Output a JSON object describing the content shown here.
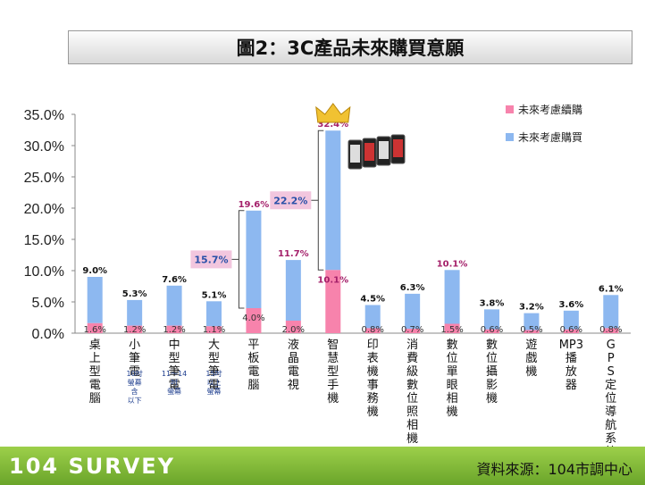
{
  "title": "圖2：3C產品未來購買意願",
  "footer": {
    "brand": "104 SURVEY",
    "source": "資料來源：104市調中心"
  },
  "colors": {
    "continue": "#f783ac",
    "buy": "#8db8f0",
    "annotation": "#f2c6de",
    "footer": "#7db83a"
  },
  "chart_data": {
    "type": "bar",
    "stacked": true,
    "ylim": [
      0,
      35
    ],
    "yticks": [
      "0.0%",
      "5.0%",
      "10.0%",
      "15.0%",
      "20.0%",
      "25.0%",
      "30.0%",
      "35.0%"
    ],
    "categories": [
      {
        "name": "桌上型電腦",
        "sub": ""
      },
      {
        "name": "小筆電",
        "sub": "10吋螢幕含以下"
      },
      {
        "name": "中型筆電",
        "sub": "11～14吋螢幕"
      },
      {
        "name": "大型筆電",
        "sub": "15吋以上螢幕"
      },
      {
        "name": "平板電腦",
        "sub": ""
      },
      {
        "name": "液晶電視",
        "sub": ""
      },
      {
        "name": "智慧型手機",
        "sub": ""
      },
      {
        "name": "印表機事務機",
        "sub": ""
      },
      {
        "name": "消費級數位照相機",
        "sub": ""
      },
      {
        "name": "數位單眼相機",
        "sub": ""
      },
      {
        "name": "數位攝影機",
        "sub": ""
      },
      {
        "name": "遊戲機",
        "sub": ""
      },
      {
        "name": "MP3播放器",
        "sub": ""
      },
      {
        "name": "GPS定位導航系統",
        "sub": ""
      }
    ],
    "series": [
      {
        "name": "未來考慮續購",
        "values": [
          1.6,
          1.2,
          1.2,
          1.1,
          4.0,
          2.0,
          10.1,
          0.8,
          0.7,
          1.5,
          0.6,
          0.5,
          0.6,
          0.8
        ],
        "labels": [
          "1.6%",
          "1.2%",
          "1.2%",
          "1.1%",
          "4.0%",
          "2.0%",
          "10.1%",
          "0.8%",
          "0.7%",
          "1.5%",
          "0.6%",
          "0.5%",
          "0.6%",
          "0.8%"
        ]
      },
      {
        "name": "未來考慮購買",
        "totals": [
          9.0,
          5.3,
          7.6,
          5.1,
          19.6,
          11.7,
          32.4,
          4.5,
          6.3,
          10.1,
          3.8,
          3.2,
          3.6,
          6.1
        ],
        "labels": [
          "9.0%",
          "5.3%",
          "7.6%",
          "5.1%",
          "19.6%",
          "11.7%",
          "32.4%",
          "4.5%",
          "6.3%",
          "10.1%",
          "3.8%",
          "3.2%",
          "3.6%",
          "6.1%"
        ]
      }
    ],
    "annotations": [
      {
        "text": "15.7%",
        "category_index": 4,
        "from": 4.0,
        "to": 19.6
      },
      {
        "text": "22.2%",
        "category_index": 6,
        "from": 10.1,
        "to": 32.4
      }
    ],
    "legend": "top-right"
  }
}
